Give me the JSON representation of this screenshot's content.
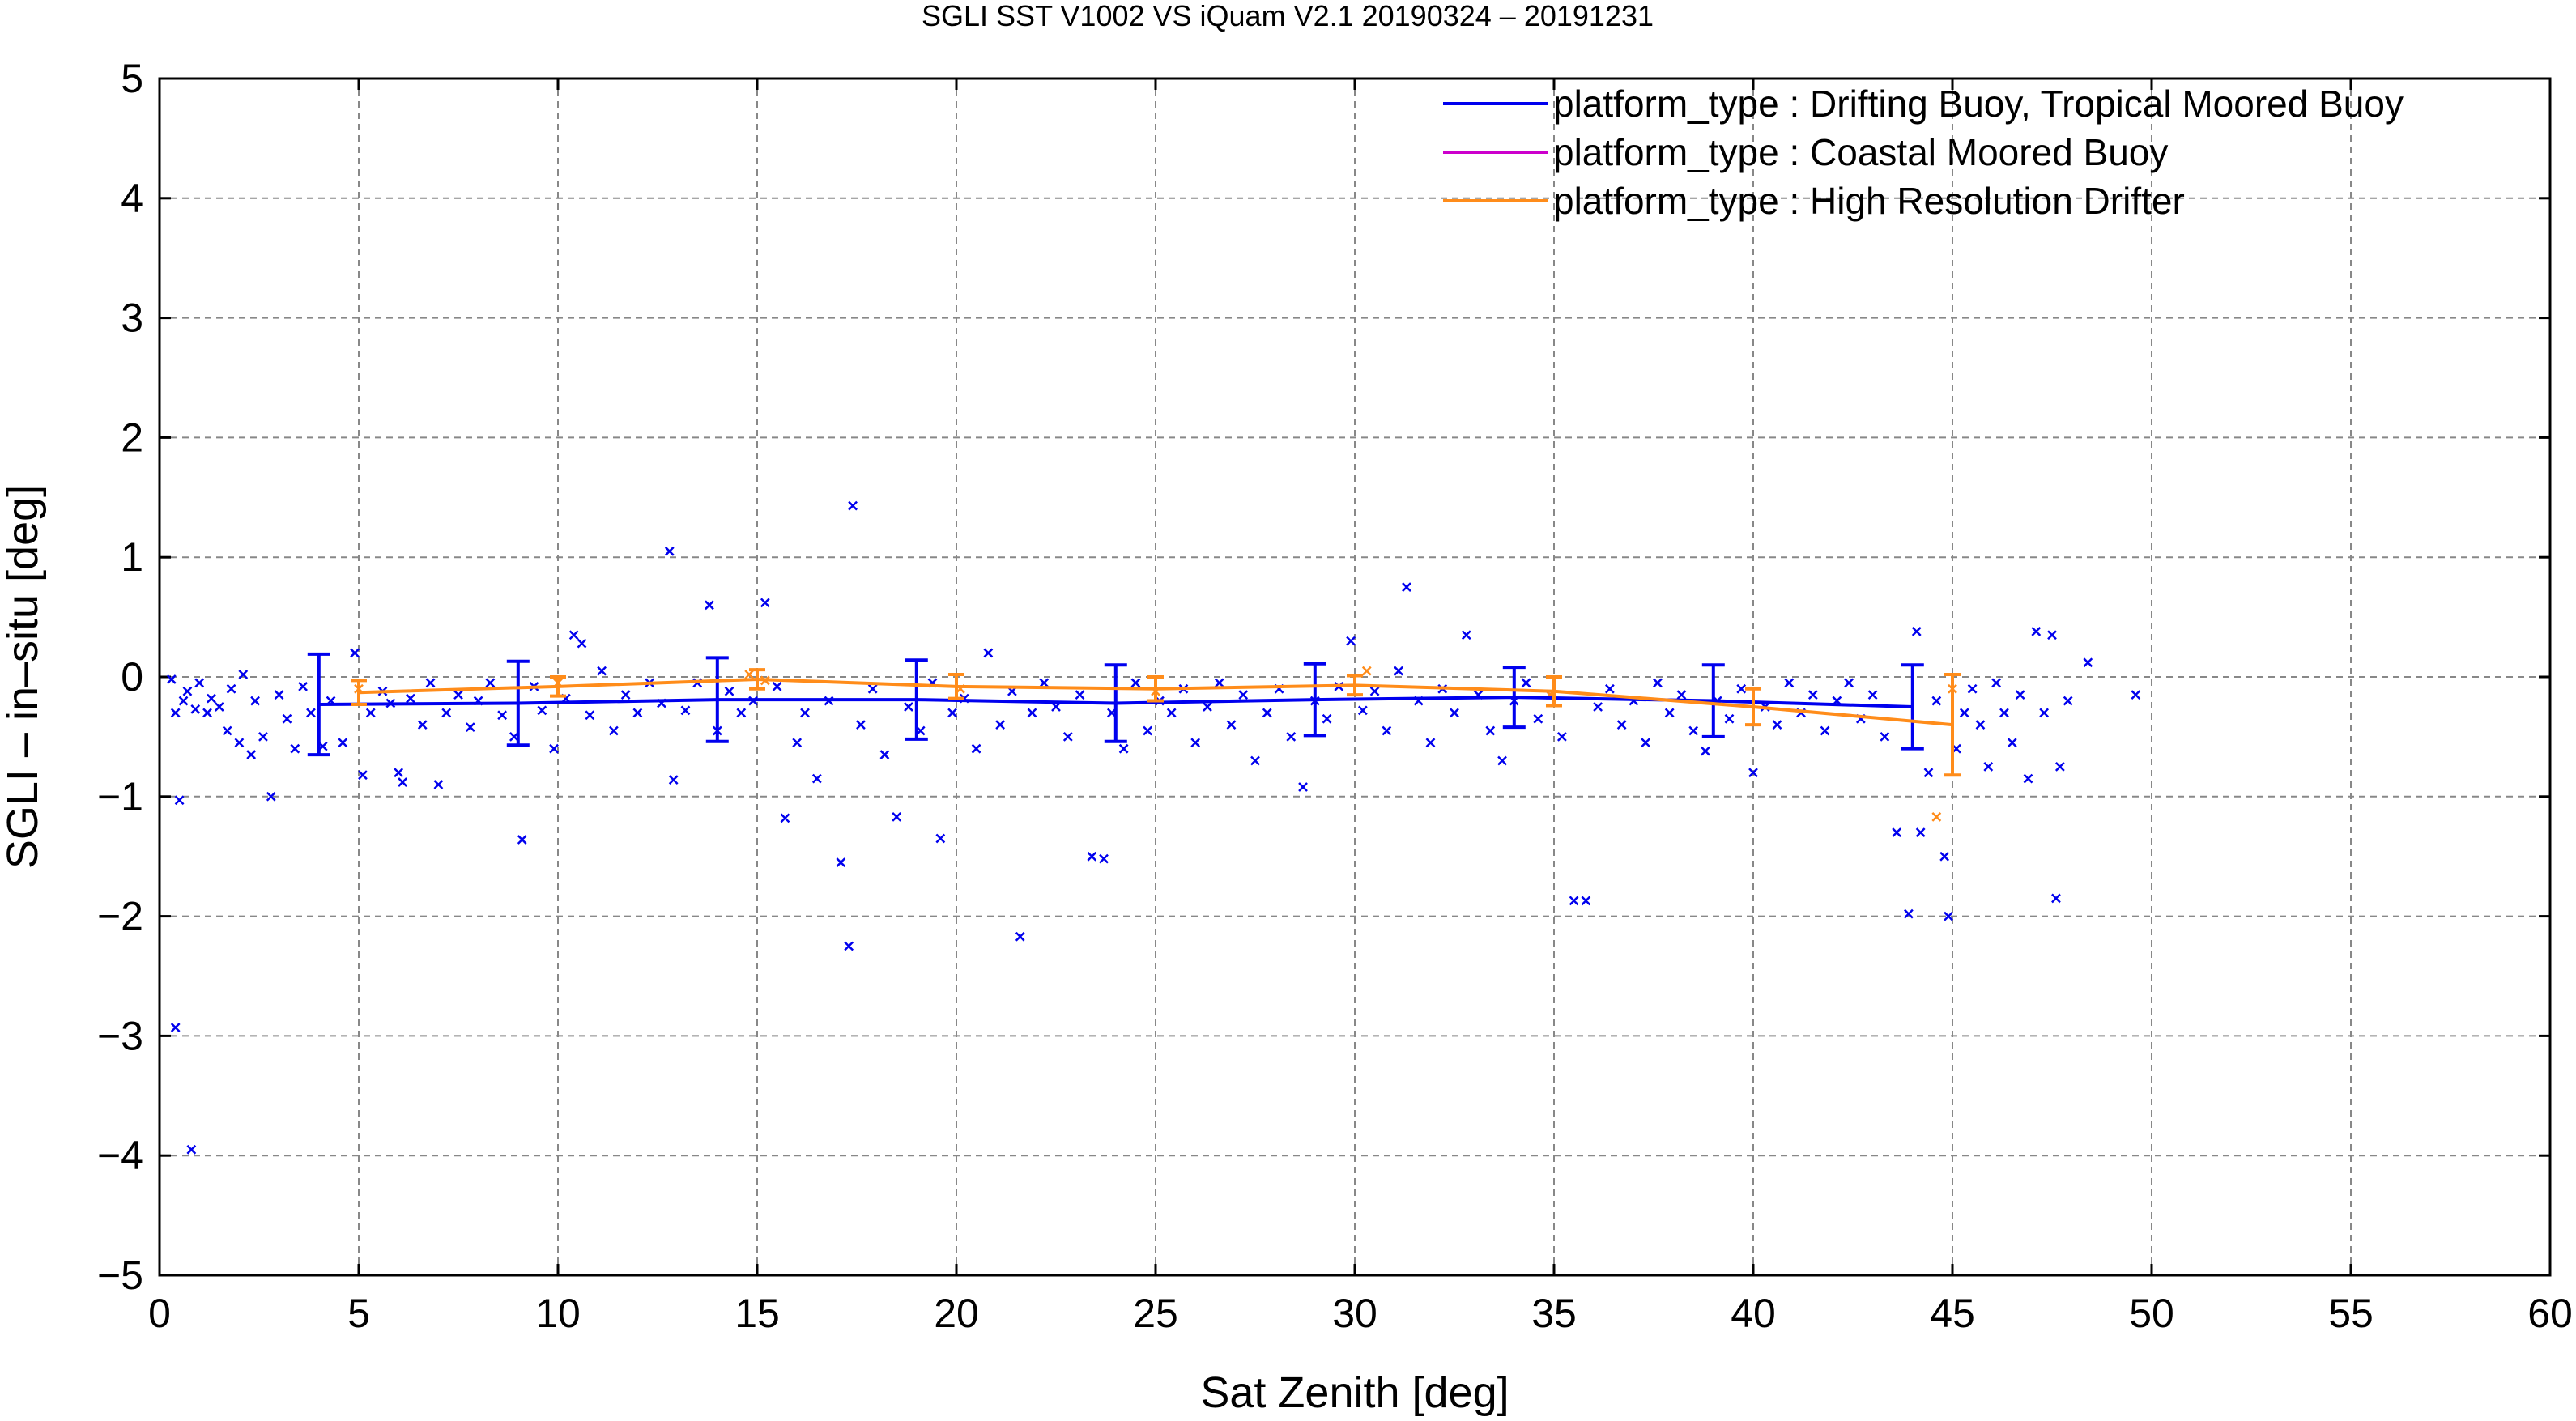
{
  "chart_data": {
    "type": "scatter",
    "title": "SGLI SST V1002 VS iQuam V2.1 20190324 – 20191231",
    "xlabel": "Sat Zenith [deg]",
    "ylabel": "SGLI – in–situ [deg]",
    "xlim": [
      0,
      60
    ],
    "ylim": [
      -5,
      5
    ],
    "x_ticks": [
      0,
      5,
      10,
      15,
      20,
      25,
      30,
      35,
      40,
      45,
      50,
      55,
      60
    ],
    "y_ticks": [
      -5,
      -4,
      -3,
      -2,
      -1,
      0,
      1,
      2,
      3,
      4,
      5
    ],
    "x_tick_labels": [
      "0",
      "5",
      "10",
      "15",
      "20",
      "25",
      "30",
      "35",
      "40",
      "45",
      "50",
      "55",
      "60"
    ],
    "y_tick_labels": [
      "−5",
      "−4",
      "−3",
      "−2",
      "−1",
      "0",
      "1",
      "2",
      "3",
      "4",
      "5"
    ],
    "grid": true,
    "grid_style": "dashed",
    "legend_position": "top-right",
    "colors": {
      "drifting": "#0000ee",
      "coastal": "#cc00cc",
      "hrd": "#ff8c1a",
      "grid": "#888888",
      "frame": "#000000"
    },
    "series": [
      {
        "name": "platform_type : Drifting Buoy, Tropical Moored Buoy",
        "color": "#0000ee",
        "mean_line": {
          "x": [
            4,
            9,
            14,
            19,
            24,
            29,
            34,
            39,
            44
          ],
          "y": [
            -0.23,
            -0.22,
            -0.19,
            -0.19,
            -0.22,
            -0.19,
            -0.17,
            -0.2,
            -0.25
          ],
          "err": [
            0.42,
            0.35,
            0.35,
            0.33,
            0.32,
            0.3,
            0.25,
            0.3,
            0.35
          ]
        },
        "scatter_points": [
          [
            0.3,
            -0.02
          ],
          [
            0.4,
            -0.3
          ],
          [
            0.4,
            -2.93
          ],
          [
            0.5,
            -1.03
          ],
          [
            0.6,
            -0.2
          ],
          [
            0.7,
            -0.12
          ],
          [
            0.8,
            -3.95
          ],
          [
            0.9,
            -0.27
          ],
          [
            1.0,
            -0.05
          ],
          [
            1.2,
            -0.3
          ],
          [
            1.3,
            -0.18
          ],
          [
            1.5,
            -0.25
          ],
          [
            1.7,
            -0.45
          ],
          [
            1.8,
            -0.1
          ],
          [
            2.0,
            -0.55
          ],
          [
            2.1,
            0.02
          ],
          [
            2.3,
            -0.65
          ],
          [
            2.4,
            -0.2
          ],
          [
            2.6,
            -0.5
          ],
          [
            2.8,
            -1.0
          ],
          [
            3.0,
            -0.15
          ],
          [
            3.2,
            -0.35
          ],
          [
            3.4,
            -0.6
          ],
          [
            3.6,
            -0.08
          ],
          [
            3.8,
            -0.3
          ],
          [
            4.1,
            -0.58
          ],
          [
            4.3,
            -0.2
          ],
          [
            4.6,
            -0.55
          ],
          [
            4.9,
            0.2
          ],
          [
            5.1,
            -0.82
          ],
          [
            5.3,
            -0.3
          ],
          [
            5.6,
            -0.12
          ],
          [
            5.8,
            -0.22
          ],
          [
            6.0,
            -0.8
          ],
          [
            6.1,
            -0.88
          ],
          [
            6.3,
            -0.18
          ],
          [
            6.6,
            -0.4
          ],
          [
            6.8,
            -0.05
          ],
          [
            7.0,
            -0.9
          ],
          [
            7.2,
            -0.3
          ],
          [
            7.5,
            -0.15
          ],
          [
            7.8,
            -0.42
          ],
          [
            8.0,
            -0.2
          ],
          [
            8.3,
            -0.05
          ],
          [
            8.6,
            -0.32
          ],
          [
            8.9,
            -0.5
          ],
          [
            9.1,
            -1.36
          ],
          [
            9.4,
            -0.08
          ],
          [
            9.6,
            -0.28
          ],
          [
            9.9,
            -0.6
          ],
          [
            10.2,
            -0.18
          ],
          [
            10.4,
            0.35
          ],
          [
            10.6,
            0.28
          ],
          [
            10.8,
            -0.32
          ],
          [
            11.1,
            0.05
          ],
          [
            11.4,
            -0.45
          ],
          [
            11.7,
            -0.15
          ],
          [
            12.0,
            -0.3
          ],
          [
            12.3,
            -0.05
          ],
          [
            12.6,
            -0.22
          ],
          [
            12.8,
            1.05
          ],
          [
            12.9,
            -0.86
          ],
          [
            13.2,
            -0.28
          ],
          [
            13.5,
            -0.05
          ],
          [
            13.8,
            0.6
          ],
          [
            14.0,
            -0.45
          ],
          [
            14.3,
            -0.12
          ],
          [
            14.6,
            -0.3
          ],
          [
            14.9,
            -0.2
          ],
          [
            15.2,
            0.62
          ],
          [
            15.5,
            -0.08
          ],
          [
            15.7,
            -1.18
          ],
          [
            16.0,
            -0.55
          ],
          [
            16.2,
            -0.3
          ],
          [
            16.5,
            -0.85
          ],
          [
            16.8,
            -0.2
          ],
          [
            17.1,
            -1.55
          ],
          [
            17.3,
            -2.25
          ],
          [
            17.4,
            1.43
          ],
          [
            17.6,
            -0.4
          ],
          [
            17.9,
            -0.1
          ],
          [
            18.2,
            -0.65
          ],
          [
            18.5,
            -1.17
          ],
          [
            18.8,
            -0.25
          ],
          [
            19.1,
            -0.45
          ],
          [
            19.4,
            -0.05
          ],
          [
            19.6,
            -1.35
          ],
          [
            19.9,
            -0.3
          ],
          [
            20.2,
            -0.18
          ],
          [
            20.5,
            -0.6
          ],
          [
            20.8,
            0.2
          ],
          [
            21.1,
            -0.4
          ],
          [
            21.4,
            -0.12
          ],
          [
            21.6,
            -2.17
          ],
          [
            21.9,
            -0.3
          ],
          [
            22.2,
            -0.05
          ],
          [
            22.5,
            -0.25
          ],
          [
            22.8,
            -0.5
          ],
          [
            23.1,
            -0.15
          ],
          [
            23.4,
            -1.5
          ],
          [
            23.7,
            -1.52
          ],
          [
            23.9,
            -0.3
          ],
          [
            24.2,
            -0.6
          ],
          [
            24.5,
            -0.05
          ],
          [
            24.8,
            -0.45
          ],
          [
            25.1,
            -0.2
          ],
          [
            25.4,
            -0.3
          ],
          [
            25.7,
            -0.1
          ],
          [
            26.0,
            -0.55
          ],
          [
            26.3,
            -0.25
          ],
          [
            26.6,
            -0.05
          ],
          [
            26.9,
            -0.4
          ],
          [
            27.2,
            -0.15
          ],
          [
            27.5,
            -0.7
          ],
          [
            27.8,
            -0.3
          ],
          [
            28.1,
            -0.1
          ],
          [
            28.4,
            -0.5
          ],
          [
            28.7,
            -0.92
          ],
          [
            29.0,
            -0.2
          ],
          [
            29.3,
            -0.35
          ],
          [
            29.6,
            -0.08
          ],
          [
            29.9,
            0.3
          ],
          [
            30.2,
            -0.28
          ],
          [
            30.5,
            -0.12
          ],
          [
            30.8,
            -0.45
          ],
          [
            31.1,
            0.05
          ],
          [
            31.3,
            0.75
          ],
          [
            31.6,
            -0.2
          ],
          [
            31.9,
            -0.55
          ],
          [
            32.2,
            -0.1
          ],
          [
            32.5,
            -0.3
          ],
          [
            32.8,
            0.35
          ],
          [
            33.1,
            -0.15
          ],
          [
            33.4,
            -0.45
          ],
          [
            33.7,
            -0.7
          ],
          [
            34.0,
            -0.2
          ],
          [
            34.3,
            -0.05
          ],
          [
            34.6,
            -0.35
          ],
          [
            34.9,
            -0.15
          ],
          [
            35.2,
            -0.5
          ],
          [
            35.5,
            -1.87
          ],
          [
            35.8,
            -1.87
          ],
          [
            36.1,
            -0.25
          ],
          [
            36.4,
            -0.1
          ],
          [
            36.7,
            -0.4
          ],
          [
            37.0,
            -0.2
          ],
          [
            37.3,
            -0.55
          ],
          [
            37.6,
            -0.05
          ],
          [
            37.9,
            -0.3
          ],
          [
            38.2,
            -0.15
          ],
          [
            38.5,
            -0.45
          ],
          [
            38.8,
            -0.62
          ],
          [
            39.1,
            -0.2
          ],
          [
            39.4,
            -0.35
          ],
          [
            39.7,
            -0.1
          ],
          [
            40.0,
            -0.8
          ],
          [
            40.3,
            -0.25
          ],
          [
            40.6,
            -0.4
          ],
          [
            40.9,
            -0.05
          ],
          [
            41.2,
            -0.3
          ],
          [
            41.5,
            -0.15
          ],
          [
            41.8,
            -0.45
          ],
          [
            42.1,
            -0.2
          ],
          [
            42.4,
            -0.05
          ],
          [
            42.7,
            -0.35
          ],
          [
            43.0,
            -0.15
          ],
          [
            43.3,
            -0.5
          ],
          [
            43.6,
            -1.3
          ],
          [
            43.9,
            -1.98
          ],
          [
            44.1,
            0.38
          ],
          [
            44.2,
            -1.3
          ],
          [
            44.4,
            -0.8
          ],
          [
            44.6,
            -0.2
          ],
          [
            44.8,
            -1.5
          ],
          [
            44.9,
            -2.0
          ],
          [
            45.1,
            -0.6
          ],
          [
            45.3,
            -0.3
          ],
          [
            45.5,
            -0.1
          ],
          [
            45.7,
            -0.4
          ],
          [
            45.9,
            -0.75
          ],
          [
            46.1,
            -0.05
          ],
          [
            46.3,
            -0.3
          ],
          [
            46.5,
            -0.55
          ],
          [
            46.7,
            -0.15
          ],
          [
            46.9,
            -0.85
          ],
          [
            47.1,
            0.38
          ],
          [
            47.3,
            -0.3
          ],
          [
            47.5,
            0.35
          ],
          [
            47.6,
            -1.85
          ],
          [
            47.7,
            -0.75
          ],
          [
            47.9,
            -0.2
          ],
          [
            48.4,
            0.12
          ],
          [
            49.6,
            -0.15
          ]
        ]
      },
      {
        "name": "platform_type : Coastal Moored Buoy",
        "color": "#cc00cc",
        "scatter_points": []
      },
      {
        "name": "platform_type : High Resolution Drifter",
        "color": "#ff8c1a",
        "mean_line": {
          "x": [
            5,
            10,
            15,
            20,
            25,
            30,
            35,
            40,
            45
          ],
          "y": [
            -0.13,
            -0.08,
            -0.02,
            -0.08,
            -0.1,
            -0.07,
            -0.12,
            -0.25,
            -0.4
          ],
          "err": [
            0.1,
            0.08,
            0.08,
            0.1,
            0.1,
            0.08,
            0.12,
            0.15,
            0.42
          ]
        },
        "scatter_points": [
          [
            5.0,
            -0.1
          ],
          [
            10.0,
            -0.05
          ],
          [
            14.8,
            0.02
          ],
          [
            15.2,
            -0.03
          ],
          [
            20.1,
            -0.1
          ],
          [
            25.0,
            -0.12
          ],
          [
            30.3,
            0.05
          ],
          [
            34.9,
            -0.15
          ],
          [
            44.6,
            -1.17
          ],
          [
            45.0,
            -0.1
          ]
        ]
      }
    ]
  }
}
